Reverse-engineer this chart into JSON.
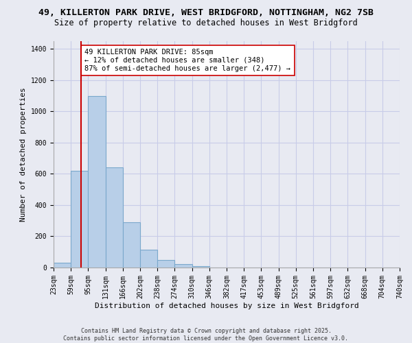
{
  "title_line1": "49, KILLERTON PARK DRIVE, WEST BRIDGFORD, NOTTINGHAM, NG2 7SB",
  "title_line2": "Size of property relative to detached houses in West Bridgford",
  "xlabel": "Distribution of detached houses by size in West Bridgford",
  "ylabel": "Number of detached properties",
  "bar_heights": [
    30,
    620,
    1100,
    640,
    290,
    115,
    48,
    20,
    10,
    0,
    0,
    0,
    0,
    0,
    0,
    0,
    0,
    0,
    0,
    0
  ],
  "categories": [
    "23sqm",
    "59sqm",
    "95sqm",
    "131sqm",
    "166sqm",
    "202sqm",
    "238sqm",
    "274sqm",
    "310sqm",
    "346sqm",
    "382sqm",
    "417sqm",
    "453sqm",
    "489sqm",
    "525sqm",
    "561sqm",
    "597sqm",
    "632sqm",
    "668sqm",
    "704sqm",
    "740sqm"
  ],
  "bar_color": "#b8cfe8",
  "bar_edge_color": "#7aa8cc",
  "grid_color": "#c8cce8",
  "bg_color": "#e8eaf2",
  "vline_color": "#cc0000",
  "vline_x": 1.6,
  "annotation_text": "49 KILLERTON PARK DRIVE: 85sqm\n← 12% of detached houses are smaller (348)\n87% of semi-detached houses are larger (2,477) →",
  "annotation_box_color": "#ffffff",
  "annotation_box_edge": "#cc0000",
  "ylim": [
    0,
    1450
  ],
  "yticks": [
    0,
    200,
    400,
    600,
    800,
    1000,
    1200,
    1400
  ],
  "footer_line1": "Contains HM Land Registry data © Crown copyright and database right 2025.",
  "footer_line2": "Contains public sector information licensed under the Open Government Licence v3.0.",
  "title_fontsize": 9.5,
  "subtitle_fontsize": 8.5,
  "axis_label_fontsize": 8,
  "tick_fontsize": 7,
  "annotation_fontsize": 7.5,
  "footer_fontsize": 6
}
